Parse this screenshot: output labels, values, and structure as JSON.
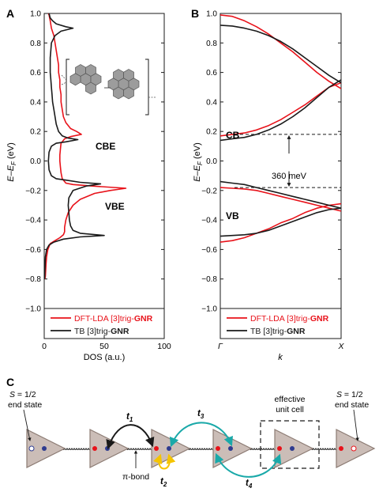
{
  "colors": {
    "dft": "#e8121a",
    "tb": "#1a1a1a",
    "triangle_fill": "#cbbdb7",
    "triangle_stroke": "#8c7b73",
    "blue_site": "#2e3b8f",
    "red_site": "#e8121a",
    "teal_arrow": "#1aa9a9",
    "yellow_arrow": "#f5c400"
  },
  "panel_labels": {
    "a": "A",
    "b": "B",
    "c": "C"
  },
  "chart_data": [
    {
      "type": "line",
      "panel": "A",
      "title": "",
      "xlabel": "DOS (a.u.)",
      "ylabel_main": "E",
      "ylabel_minus": "–",
      "ylabel_e2": "E",
      "ylabel_sub": "F",
      "ylabel_unit": " (eV)",
      "xlim": [
        0,
        100
      ],
      "ylim": [
        -1.0,
        1.0
      ],
      "xticks": [
        "0",
        "50",
        "100"
      ],
      "yticks": [
        "1.0",
        "0.8",
        "0.6",
        "0.4",
        "0.2",
        "0.0",
        "−0.2",
        "−0.4",
        "−0.6",
        "−0.8",
        "−1.0"
      ],
      "annotations": {
        "cbe": "CBE",
        "vbe": "VBE"
      },
      "legend_position": "bottom",
      "legend": [
        {
          "series": "dft",
          "prefix": "DFT-LDA [3]trig-",
          "bold": "GNR"
        },
        {
          "series": "tb",
          "prefix": "TB [3]trig-",
          "bold": "GNR"
        }
      ],
      "series": [
        {
          "id": "dft",
          "y": [
            -0.8,
            -0.78,
            -0.75,
            -0.7,
            -0.65,
            -0.6,
            -0.56,
            -0.54,
            -0.52,
            -0.5,
            -0.48,
            -0.45,
            -0.4,
            -0.35,
            -0.3,
            -0.26,
            -0.22,
            -0.2,
            -0.185,
            -0.17,
            -0.16,
            -0.15,
            -0.12,
            -0.08,
            -0.04,
            0.0,
            0.04,
            0.08,
            0.12,
            0.15,
            0.165,
            0.18,
            0.2,
            0.22,
            0.26,
            0.3,
            0.35,
            0.4,
            0.45,
            0.5,
            0.55,
            0.6,
            0.65,
            0.7,
            0.75,
            0.8,
            0.85,
            0.9,
            0.95,
            0.99,
            1.0
          ],
          "x": [
            0.6,
            1.0,
            1.2,
            1.5,
            2.0,
            3.0,
            5.0,
            9.0,
            13.0,
            16.0,
            17.0,
            17.0,
            18.0,
            20.0,
            24.0,
            30.0,
            42.0,
            55.0,
            68.0,
            40.0,
            24.0,
            18.0,
            15.0,
            14.0,
            13.5,
            13.0,
            13.0,
            13.5,
            14.0,
            17.0,
            22.0,
            31.0,
            27.0,
            22.0,
            18.0,
            16.0,
            15.0,
            14.0,
            14.0,
            13.0,
            13.0,
            12.0,
            12.0,
            11.0,
            10.0,
            9.0,
            8.0,
            6.0,
            5.0,
            4.0,
            3.5
          ]
        },
        {
          "id": "tb",
          "y": [
            -0.8,
            -0.75,
            -0.7,
            -0.65,
            -0.6,
            -0.57,
            -0.55,
            -0.53,
            -0.515,
            -0.505,
            -0.49,
            -0.47,
            -0.44,
            -0.4,
            -0.35,
            -0.3,
            -0.25,
            -0.2,
            -0.17,
            -0.155,
            -0.145,
            -0.13,
            -0.12,
            -0.1,
            -0.06,
            0.0,
            0.06,
            0.1,
            0.12,
            0.13,
            0.145,
            0.155,
            0.17,
            0.2,
            0.25,
            0.3,
            0.35,
            0.4,
            0.45,
            0.5,
            0.55,
            0.6,
            0.65,
            0.7,
            0.75,
            0.8,
            0.85,
            0.88,
            0.9,
            0.91,
            0.93,
            0.95,
            0.97,
            1.0
          ],
          "x": [
            0.3,
            0.5,
            0.7,
            1.0,
            2.0,
            4.0,
            8.0,
            16.0,
            30.0,
            50.0,
            30.0,
            24.0,
            22.0,
            21.0,
            20.5,
            20.0,
            20.5,
            24.0,
            35.0,
            47.0,
            30.0,
            18.0,
            10.0,
            6.0,
            4.0,
            3.5,
            4.0,
            6.0,
            10.0,
            18.0,
            28.0,
            20.0,
            15.0,
            12.0,
            10.0,
            9.0,
            8.0,
            7.0,
            6.5,
            6.0,
            5.5,
            5.0,
            5.0,
            5.0,
            5.5,
            6.0,
            9.0,
            14.0,
            24.0,
            18.0,
            10.0,
            7.0,
            5.0,
            4.0
          ]
        }
      ]
    },
    {
      "type": "line",
      "panel": "B",
      "title": "",
      "xlabel": "k",
      "ylabel_main": "E",
      "ylabel_minus": "–",
      "ylabel_e2": "E",
      "ylabel_sub": "F",
      "ylabel_unit": " (eV)",
      "xlim": [
        0,
        1
      ],
      "ylim": [
        -1.0,
        1.0
      ],
      "xticks": [
        "Γ",
        "X"
      ],
      "yticks": [
        "1.0",
        "0.8",
        "0.6",
        "0.4",
        "0.2",
        "0.0",
        "−0.2",
        "−0.4",
        "−0.6",
        "−0.8",
        "−1.0"
      ],
      "annotations": {
        "cb": "CB",
        "vb": "VB",
        "gap": "360 meV"
      },
      "gap_edges": [
        0.18,
        -0.18
      ],
      "legend_position": "bottom",
      "legend": [
        {
          "series": "dft",
          "prefix": "DFT-LDA [3]trig-",
          "bold": "GNR"
        },
        {
          "series": "tb",
          "prefix": "TB [3]trig-",
          "bold": "GNR"
        }
      ],
      "k": [
        0.0,
        0.1,
        0.2,
        0.3,
        0.4,
        0.5,
        0.6,
        0.7,
        0.8,
        0.9,
        1.0
      ],
      "series": [
        {
          "id": "dft",
          "y": [
            0.99,
            0.98,
            0.95,
            0.91,
            0.86,
            0.8,
            0.74,
            0.67,
            0.6,
            0.54,
            0.49
          ]
        },
        {
          "id": "dft",
          "y": [
            0.17,
            0.18,
            0.19,
            0.21,
            0.24,
            0.28,
            0.33,
            0.38,
            0.44,
            0.5,
            0.53
          ]
        },
        {
          "id": "dft",
          "y": [
            -0.18,
            -0.185,
            -0.19,
            -0.2,
            -0.22,
            -0.24,
            -0.26,
            -0.28,
            -0.3,
            -0.32,
            -0.34
          ]
        },
        {
          "id": "dft",
          "y": [
            -0.55,
            -0.54,
            -0.52,
            -0.49,
            -0.46,
            -0.42,
            -0.39,
            -0.35,
            -0.32,
            -0.3,
            -0.29
          ]
        },
        {
          "id": "tb",
          "y": [
            0.92,
            0.915,
            0.9,
            0.88,
            0.85,
            0.81,
            0.76,
            0.7,
            0.64,
            0.58,
            0.53
          ]
        },
        {
          "id": "tb",
          "y": [
            0.14,
            0.15,
            0.16,
            0.18,
            0.21,
            0.25,
            0.3,
            0.36,
            0.43,
            0.5,
            0.55
          ]
        },
        {
          "id": "tb",
          "y": [
            -0.14,
            -0.15,
            -0.16,
            -0.18,
            -0.2,
            -0.22,
            -0.24,
            -0.26,
            -0.28,
            -0.3,
            -0.32
          ]
        },
        {
          "id": "tb",
          "y": [
            -0.51,
            -0.505,
            -0.5,
            -0.49,
            -0.47,
            -0.44,
            -0.41,
            -0.38,
            -0.35,
            -0.33,
            -0.32
          ]
        }
      ]
    }
  ],
  "schematic": {
    "left_end_italic": "S",
    "left_end_value": " = 1/2",
    "left_end_state": "end state",
    "right_end_italic": "S",
    "right_end_value": " = 1/2",
    "right_end_state": "end state",
    "pi_bond": "π-bond",
    "effective_line1": "effective",
    "effective_line2": "unit cell",
    "hop_t": "t",
    "t1_sub": "1",
    "t2_sub": "2",
    "t3_sub": "3",
    "t4_sub": "4"
  }
}
